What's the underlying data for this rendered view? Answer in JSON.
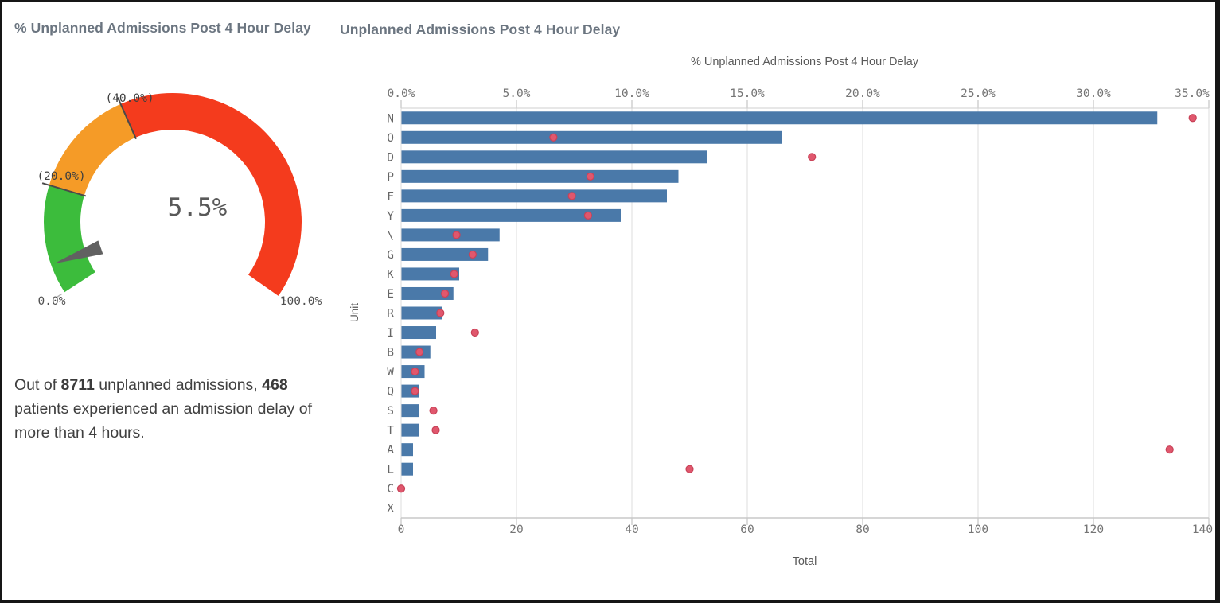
{
  "kpi_text": {
    "prefix": "Out of ",
    "total_admissions": "8711",
    "middle": " unplanned admissions, ",
    "delayed_patients": "468",
    "suffix": " patients experienced an admission delay of more than 4 hours."
  },
  "colors": {
    "bar": "#4a79a9",
    "dot_fill": "#e0576d",
    "dot_stroke": "#c84258",
    "gauge_green": "#3cbc3c",
    "gauge_orange": "#f59b27",
    "gauge_red": "#f43b1d",
    "needle": "#616161",
    "title_text": "#6b7580",
    "axis_text": "#757575",
    "gridline": "#dcdcdc"
  },
  "chart_data": [
    {
      "type": "gauge",
      "title": "% Unplanned Admissions Post 4 Hour Delay",
      "value": 5.5,
      "value_label": "5.5%",
      "min": 0,
      "max": 100,
      "min_label": "0.0%",
      "max_label": "100.0%",
      "thresholds": [
        20,
        40
      ],
      "threshold_labels": [
        "(20.0%)",
        "(40.0%)"
      ],
      "segments": [
        {
          "name": "green",
          "range": [
            0,
            20
          ],
          "color": "#3cbc3c"
        },
        {
          "name": "orange",
          "range": [
            20,
            40
          ],
          "color": "#f59b27"
        },
        {
          "name": "red",
          "range": [
            40,
            100
          ],
          "color": "#f43b1d"
        }
      ]
    },
    {
      "type": "bar",
      "title": "Unplanned Admissions Post 4 Hour Delay",
      "orientation": "horizontal",
      "ylabel": "Unit",
      "xlabel_bottom": "Total",
      "xlabel_top": "% Unplanned Admissions Post 4 Hour Delay",
      "xlim_bottom": [
        0,
        140
      ],
      "xlim_top": [
        0,
        35
      ],
      "x_bottom_ticks": [
        0,
        20,
        40,
        60,
        80,
        100,
        120,
        140
      ],
      "x_bottom_tick_labels": [
        "0",
        "20",
        "40",
        "60",
        "80",
        "100",
        "120",
        "140"
      ],
      "x_top_ticks": [
        0,
        5,
        10,
        15,
        20,
        25,
        30,
        35
      ],
      "x_top_tick_labels": [
        "0.0%",
        "5.0%",
        "10.0%",
        "15.0%",
        "20.0%",
        "25.0%",
        "30.0%",
        "35.0%"
      ],
      "grid": true,
      "categories": [
        "N",
        "O",
        "D",
        "P",
        "F",
        "Y",
        "\\",
        "G",
        "K",
        "E",
        "R",
        "I",
        "B",
        "W",
        "Q",
        "S",
        "T",
        "A",
        "L",
        "C",
        "X"
      ],
      "series": [
        {
          "name": "Total",
          "axis": "bottom",
          "style": "bar",
          "values": [
            131,
            66,
            53,
            48,
            46,
            38,
            17,
            15,
            10,
            9,
            7,
            6,
            5,
            4,
            3,
            3,
            3,
            2,
            2,
            0,
            0
          ]
        },
        {
          "name": "% Unplanned Admissions Post 4 Hour Delay",
          "axis": "top",
          "style": "point",
          "values": [
            34.3,
            6.6,
            17.8,
            8.2,
            7.4,
            8.1,
            2.4,
            3.1,
            2.3,
            1.9,
            1.7,
            3.2,
            0.8,
            0.6,
            0.6,
            1.4,
            1.5,
            33.3,
            12.5,
            0.0,
            null
          ]
        }
      ]
    }
  ]
}
